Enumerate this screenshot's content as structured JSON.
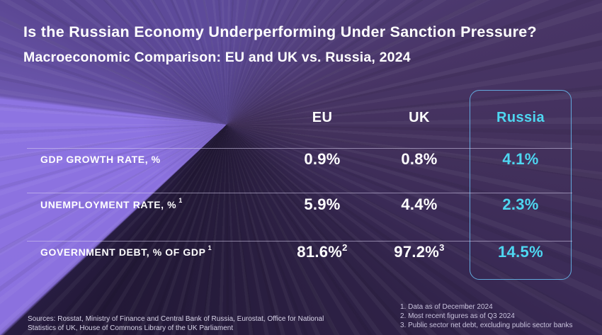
{
  "header": {
    "title": "Is the Russian Economy Underperforming Under Sanction Pressure?",
    "subtitle": "Macroeconomic Comparison: EU and UK vs. Russia, 2024"
  },
  "table": {
    "columns": [
      "EU",
      "UK",
      "Russia"
    ],
    "rows": [
      {
        "label": "GDP GROWTH RATE, %",
        "label_sup": "",
        "eu": "0.9%",
        "eu_sup": "",
        "uk": "0.8%",
        "uk_sup": "",
        "russia": "4.1%"
      },
      {
        "label": "UNEMPLOYMENT RATE, %",
        "label_sup": "1",
        "eu": "5.9%",
        "eu_sup": "",
        "uk": "4.4%",
        "uk_sup": "",
        "russia": "2.3%"
      },
      {
        "label": "GOVERNMENT DEBT, % OF GDP",
        "label_sup": "1",
        "eu": "81.6%",
        "eu_sup": "2",
        "uk": "97.2%",
        "uk_sup": "3",
        "russia": "14.5%"
      }
    ]
  },
  "footnotes": [
    "1. Data as of December 2024",
    "2. Most recent figures as of Q3 2024",
    "3. Public sector net debt, excluding public sector banks"
  ],
  "sources": "Sources: Rosstat, Ministry of Finance and Central Bank of Russia, Eurostat, Office for National Statistics of UK, House of Commons Library of the UK Parliament",
  "colors": {
    "accent_cyan": "#4ED7F1",
    "box_border": "#63A9DC",
    "bright_wedge": "#8B71DF",
    "dark_purple": "#221836",
    "mid_purple": "#5B4793",
    "text_white": "#FFFFFF"
  },
  "chart_data": {
    "type": "table",
    "title": "Is the Russian Economy Underperforming Under Sanction Pressure?",
    "subtitle": "Macroeconomic Comparison: EU and UK vs. Russia, 2024",
    "columns": [
      "EU",
      "UK",
      "Russia"
    ],
    "rows": [
      {
        "metric": "GDP growth rate, %",
        "EU": 0.9,
        "UK": 0.8,
        "Russia": 4.1
      },
      {
        "metric": "Unemployment rate, %",
        "EU": 5.9,
        "UK": 4.4,
        "Russia": 2.3
      },
      {
        "metric": "Government debt, % of GDP",
        "EU": 81.6,
        "UK": 97.2,
        "Russia": 14.5
      }
    ],
    "unit": "%",
    "highlight_column": "Russia",
    "notes": [
      "Data as of December 2024",
      "Most recent figures as of Q3 2024",
      "Public sector net debt, excluding public sector banks"
    ]
  }
}
